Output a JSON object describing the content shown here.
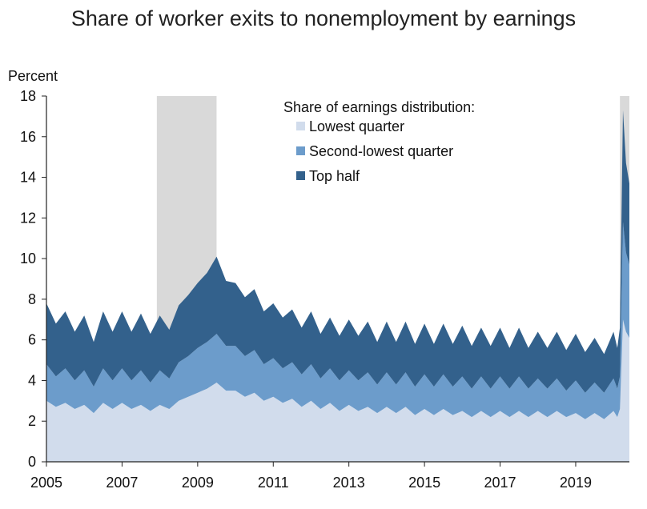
{
  "chart_data": {
    "type": "area",
    "stacked": true,
    "title": "Share of worker exits to nonemployment by earnings",
    "ylabel": "Percent",
    "xlabel": "",
    "ylim": [
      0,
      18
    ],
    "xlim": [
      2005,
      2020.42
    ],
    "yticks": [
      "0",
      "2",
      "4",
      "6",
      "8",
      "10",
      "12",
      "14",
      "16",
      "18"
    ],
    "xticks": [
      "2005",
      "2007",
      "2009",
      "2011",
      "2013",
      "2015",
      "2017",
      "2019"
    ],
    "legend_title": "Share of earnings distribution:",
    "legend_position": "top-right",
    "recessions": [
      [
        2007.92,
        2009.5
      ],
      [
        2020.17,
        2020.42
      ]
    ],
    "colors": {
      "lowest": "#d1dcec",
      "second": "#6c9ccb",
      "top": "#33618c",
      "recession": "#d9d9d9"
    },
    "x": [
      2005,
      2005.25,
      2005.5,
      2005.75,
      2006,
      2006.25,
      2006.5,
      2006.75,
      2007,
      2007.25,
      2007.5,
      2007.75,
      2008,
      2008.25,
      2008.5,
      2008.75,
      2009,
      2009.25,
      2009.5,
      2009.75,
      2010,
      2010.25,
      2010.5,
      2010.75,
      2011,
      2011.25,
      2011.5,
      2011.75,
      2012,
      2012.25,
      2012.5,
      2012.75,
      2013,
      2013.25,
      2013.5,
      2013.75,
      2014,
      2014.25,
      2014.5,
      2014.75,
      2015,
      2015.25,
      2015.5,
      2015.75,
      2016,
      2016.25,
      2016.5,
      2016.75,
      2017,
      2017.25,
      2017.5,
      2017.75,
      2018,
      2018.25,
      2018.5,
      2018.75,
      2019,
      2019.25,
      2019.5,
      2019.75,
      2020,
      2020.1,
      2020.17,
      2020.25,
      2020.33,
      2020.42
    ],
    "series": [
      {
        "name": "Lowest quarter",
        "values": [
          3.0,
          2.7,
          2.9,
          2.6,
          2.8,
          2.4,
          2.9,
          2.6,
          2.9,
          2.6,
          2.8,
          2.5,
          2.8,
          2.6,
          3.0,
          3.2,
          3.4,
          3.6,
          3.9,
          3.5,
          3.5,
          3.2,
          3.4,
          3.0,
          3.2,
          2.9,
          3.1,
          2.7,
          3.0,
          2.6,
          2.9,
          2.5,
          2.8,
          2.5,
          2.7,
          2.4,
          2.7,
          2.4,
          2.7,
          2.3,
          2.6,
          2.3,
          2.6,
          2.3,
          2.5,
          2.2,
          2.5,
          2.2,
          2.5,
          2.2,
          2.5,
          2.2,
          2.5,
          2.2,
          2.5,
          2.2,
          2.4,
          2.1,
          2.4,
          2.1,
          2.5,
          2.2,
          2.6,
          7.0,
          6.4,
          6.1
        ]
      },
      {
        "name": "Second-lowest quarter",
        "values": [
          1.8,
          1.5,
          1.7,
          1.4,
          1.7,
          1.3,
          1.7,
          1.4,
          1.7,
          1.4,
          1.7,
          1.4,
          1.7,
          1.5,
          1.9,
          2.0,
          2.2,
          2.3,
          2.4,
          2.2,
          2.2,
          2.0,
          2.1,
          1.8,
          1.9,
          1.7,
          1.8,
          1.6,
          1.8,
          1.5,
          1.7,
          1.5,
          1.7,
          1.5,
          1.7,
          1.4,
          1.7,
          1.4,
          1.7,
          1.4,
          1.7,
          1.4,
          1.7,
          1.4,
          1.7,
          1.4,
          1.7,
          1.4,
          1.7,
          1.4,
          1.7,
          1.4,
          1.6,
          1.4,
          1.6,
          1.3,
          1.6,
          1.3,
          1.5,
          1.3,
          1.6,
          1.4,
          1.6,
          4.8,
          3.9,
          3.6
        ]
      },
      {
        "name": "Top half",
        "values": [
          3.0,
          2.6,
          2.8,
          2.4,
          2.7,
          2.2,
          2.8,
          2.4,
          2.8,
          2.4,
          2.8,
          2.4,
          2.7,
          2.4,
          2.8,
          3.0,
          3.2,
          3.4,
          3.8,
          3.2,
          3.1,
          2.9,
          3.0,
          2.6,
          2.7,
          2.5,
          2.6,
          2.3,
          2.6,
          2.2,
          2.5,
          2.2,
          2.5,
          2.2,
          2.5,
          2.1,
          2.5,
          2.1,
          2.5,
          2.1,
          2.5,
          2.1,
          2.5,
          2.1,
          2.5,
          2.1,
          2.4,
          2.1,
          2.4,
          2.0,
          2.4,
          2.0,
          2.3,
          2.0,
          2.3,
          2.0,
          2.3,
          2.0,
          2.2,
          1.9,
          2.3,
          2.0,
          2.4,
          5.5,
          4.4,
          4.0
        ]
      }
    ]
  }
}
